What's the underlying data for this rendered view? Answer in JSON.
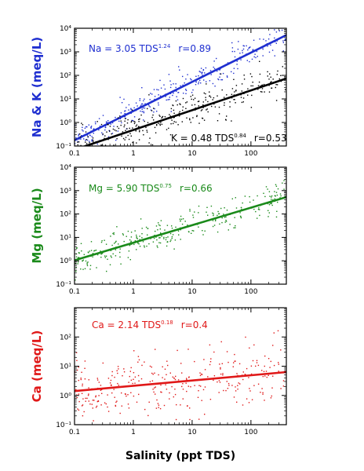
{
  "xlabel": "Salinity (ppt TDS)",
  "chart_data": [
    {
      "type": "scatter",
      "ylabel": "Na & K (meq/L)",
      "xlim": [
        0.1,
        400
      ],
      "ylim": [
        0.1,
        10000
      ],
      "xscale": "log",
      "yscale": "log",
      "grid": false,
      "y_ticks": [
        "10⁻¹",
        "10⁰",
        "10¹",
        "10²",
        "10³",
        "10⁴"
      ],
      "x_ticks": [
        "0.1",
        "1",
        "10",
        "100"
      ],
      "series": [
        {
          "name": "Na",
          "color": "#1f2fd0",
          "fit": {
            "coef": 3.05,
            "exp": 1.24,
            "r": 0.89
          },
          "label": {
            "pre": "Na = 3.05 TDS",
            "exp": "1.24",
            "r": "r=0.89"
          }
        },
        {
          "name": "K",
          "color": "#000000",
          "fit": {
            "coef": 0.48,
            "exp": 0.84,
            "r": 0.53
          },
          "label": {
            "pre": "K = 0.48 TDS",
            "exp": "0.84",
            "r": "r=0.53"
          }
        }
      ]
    },
    {
      "type": "scatter",
      "ylabel": "Mg (meq/L)",
      "xlim": [
        0.1,
        400
      ],
      "ylim": [
        0.1,
        10000
      ],
      "xscale": "log",
      "yscale": "log",
      "grid": false,
      "y_ticks": [
        "10⁻¹",
        "10⁰",
        "10¹",
        "10²",
        "10³",
        "10⁴"
      ],
      "x_ticks": [
        "0.1",
        "1",
        "10",
        "100"
      ],
      "series": [
        {
          "name": "Mg",
          "color": "#1a8a1a",
          "fit": {
            "coef": 5.9,
            "exp": 0.75,
            "r": 0.66
          },
          "label": {
            "pre": "Mg = 5.90 TDS",
            "exp": "0.75",
            "r": "r=0.66"
          }
        }
      ]
    },
    {
      "type": "scatter",
      "ylabel": "Ca (meq/L)",
      "xlim": [
        0.1,
        400
      ],
      "ylim": [
        0.1,
        1000
      ],
      "xscale": "log",
      "yscale": "log",
      "grid": false,
      "y_ticks": [
        "10⁻¹",
        "10⁰",
        "10¹",
        "10²"
      ],
      "x_ticks": [
        "0.1",
        "1",
        "10",
        "100"
      ],
      "series": [
        {
          "name": "Ca",
          "color": "#e01818",
          "fit": {
            "coef": 2.14,
            "exp": 0.18,
            "r": 0.4
          },
          "label": {
            "pre": "Ca = 2.14 TDS",
            "exp": "0.18",
            "r": "r=0.4"
          }
        }
      ]
    }
  ]
}
